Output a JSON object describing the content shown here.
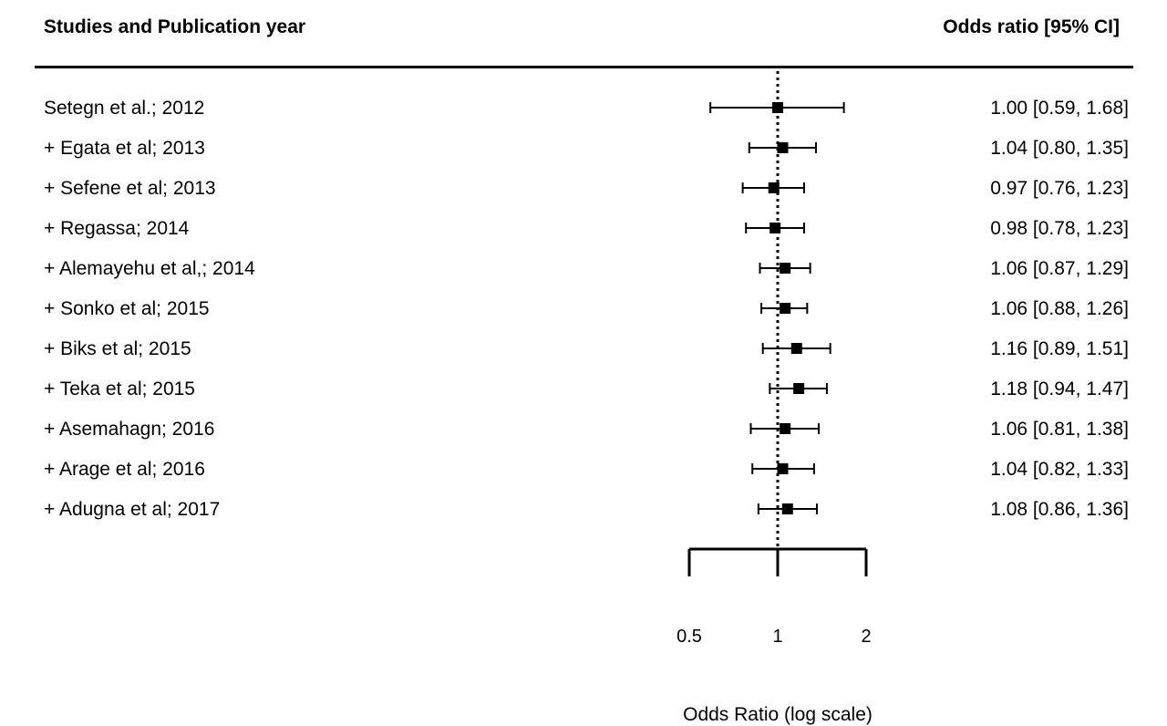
{
  "header": {
    "left": "Studies and Publication year",
    "right": "Odds ratio [95% CI]"
  },
  "chart_data": {
    "type": "forest",
    "xscale": "log",
    "xlabel": "Odds Ratio (log scale)",
    "xlim": [
      0.5,
      2
    ],
    "xticks": [
      0.5,
      1,
      2
    ],
    "xtick_labels": [
      "0.5",
      "1",
      "2"
    ],
    "reference_line": 1,
    "studies": [
      {
        "label": "Setegn et al.; 2012",
        "or": 1.0,
        "lower": 0.59,
        "upper": 1.68,
        "ci_text": "1.00 [0.59, 1.68]"
      },
      {
        "label": "+ Egata et al; 2013",
        "or": 1.04,
        "lower": 0.8,
        "upper": 1.35,
        "ci_text": "1.04 [0.80, 1.35]"
      },
      {
        "label": "+ Sefene et al; 2013",
        "or": 0.97,
        "lower": 0.76,
        "upper": 1.23,
        "ci_text": "0.97 [0.76, 1.23]"
      },
      {
        "label": "+ Regassa; 2014",
        "or": 0.98,
        "lower": 0.78,
        "upper": 1.23,
        "ci_text": "0.98 [0.78, 1.23]"
      },
      {
        "label": "+ Alemayehu et al,; 2014",
        "or": 1.06,
        "lower": 0.87,
        "upper": 1.29,
        "ci_text": "1.06 [0.87, 1.29]"
      },
      {
        "label": "+ Sonko et al; 2015",
        "or": 1.06,
        "lower": 0.88,
        "upper": 1.26,
        "ci_text": "1.06 [0.88, 1.26]"
      },
      {
        "label": "+ Biks et al; 2015",
        "or": 1.16,
        "lower": 0.89,
        "upper": 1.51,
        "ci_text": "1.16 [0.89, 1.51]"
      },
      {
        "label": "+ Teka et al; 2015",
        "or": 1.18,
        "lower": 0.94,
        "upper": 1.47,
        "ci_text": "1.18 [0.94, 1.47]"
      },
      {
        "label": "+ Asemahagn; 2016",
        "or": 1.06,
        "lower": 0.81,
        "upper": 1.38,
        "ci_text": "1.06 [0.81, 1.38]"
      },
      {
        "label": "+ Arage et al; 2016",
        "or": 1.04,
        "lower": 0.82,
        "upper": 1.33,
        "ci_text": "1.04 [0.82, 1.33]"
      },
      {
        "label": "+ Adugna et al; 2017",
        "or": 1.08,
        "lower": 0.86,
        "upper": 1.36,
        "ci_text": "1.08 [0.86, 1.36]"
      }
    ]
  }
}
